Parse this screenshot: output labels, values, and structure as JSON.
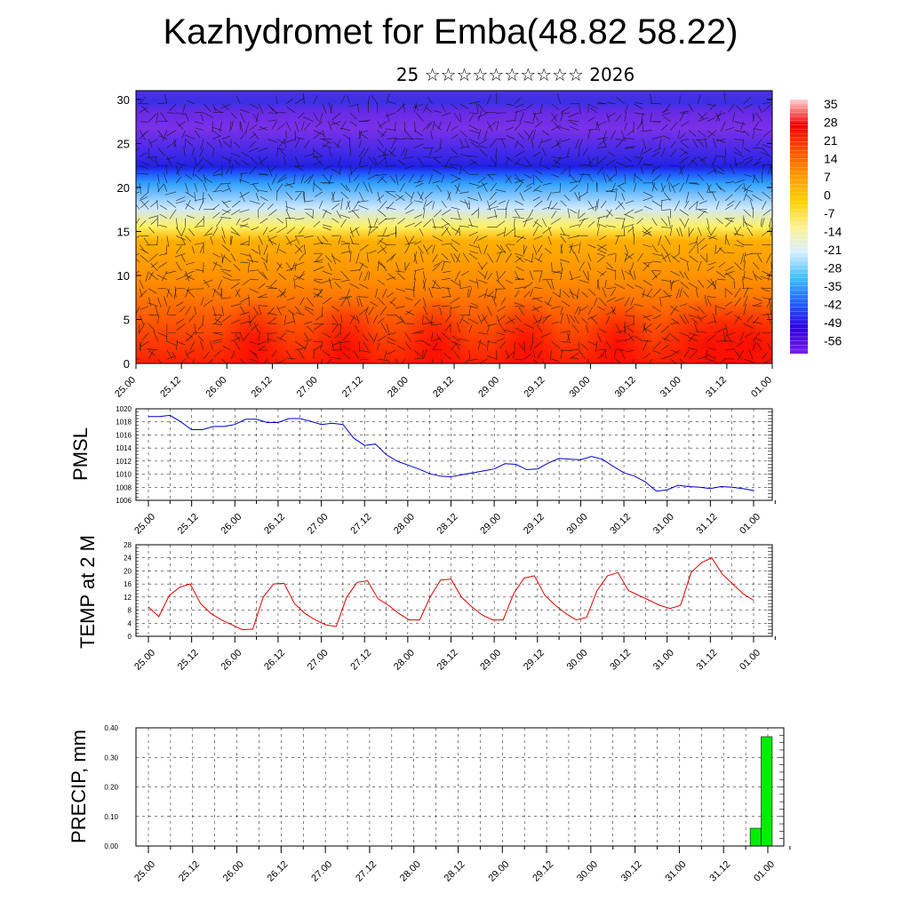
{
  "header": {
    "title": "Kazhydromet for Emba(48.82 58.22)",
    "subtitle": "25 ☆☆☆☆☆☆☆☆☆☆ 2026"
  },
  "time_labels": [
    "25.00",
    "25.12",
    "26.00",
    "26.12",
    "27.00",
    "27.12",
    "28.00",
    "28.12",
    "29.00",
    "29.12",
    "30.00",
    "30.12",
    "31.00",
    "31.12",
    "01.00"
  ],
  "chart_data": [
    {
      "type": "heatmap",
      "description_units": "height vs time cross-section with wind barbs",
      "yticks": [
        0,
        5,
        10,
        15,
        20,
        25,
        30
      ],
      "ylim": [
        0,
        31
      ],
      "colorbar": {
        "labels": [
          "35",
          "28",
          "21",
          "14",
          "7",
          "0",
          "-7",
          "-14",
          "-21",
          "-28",
          "-35",
          "-42",
          "-49",
          "-56"
        ],
        "stops": [
          "#ffd0d0",
          "#f00000",
          "#ff5000",
          "#ff9a00",
          "#ffd000",
          "#fff090",
          "#d8f0ff",
          "#40c0ff",
          "#2060ff",
          "#3000e0",
          "#7a20e0"
        ]
      },
      "colors": {
        "low": "#ff2000",
        "mid": "#ffb000",
        "yellow": "#fff060",
        "cold": "#30a0ff",
        "band": "#2020e0",
        "top": "#7a30e8"
      }
    },
    {
      "type": "line",
      "ylabel": "PMSL",
      "yticks": [
        1006,
        1008,
        1010,
        1012,
        1014,
        1016,
        1018,
        1020
      ],
      "ylim": [
        1006,
        1020
      ],
      "color": "#0000d0",
      "values": [
        1018.8,
        1018.8,
        1019,
        1018,
        1016.8,
        1016.8,
        1017.3,
        1017.3,
        1017.6,
        1018.4,
        1018.4,
        1017.9,
        1017.9,
        1018.5,
        1018.5,
        1018.1,
        1017.6,
        1017.8,
        1017.6,
        1015.5,
        1014.4,
        1014.6,
        1013,
        1012,
        1011.4,
        1010.8,
        1010.1,
        1009.7,
        1009.6,
        1009.9,
        1010.2,
        1010.5,
        1010.8,
        1011.6,
        1011.5,
        1010.7,
        1010.8,
        1011.7,
        1012.4,
        1012.3,
        1012.2,
        1012.7,
        1012.3,
        1011.2,
        1010.2,
        1009.7,
        1008.8,
        1007.4,
        1007.6,
        1008.3,
        1008.1,
        1008,
        1007.8,
        1008.1,
        1008,
        1007.8,
        1007.5
      ]
    },
    {
      "type": "line",
      "ylabel": "TEMP at 2 M",
      "yticks": [
        0,
        4,
        8,
        12,
        16,
        20,
        24,
        28
      ],
      "ylim": [
        0,
        28
      ],
      "color": "#e00000",
      "values": [
        9,
        6,
        12.5,
        15,
        16,
        10,
        7,
        5,
        3.5,
        2,
        2.2,
        12,
        16,
        16.2,
        10,
        7,
        5,
        3.5,
        3,
        12,
        16.5,
        17,
        11.5,
        9.5,
        7,
        5,
        5,
        12,
        17.2,
        17.5,
        12,
        9,
        6.5,
        5,
        5,
        13,
        17.8,
        18.5,
        12.5,
        9.5,
        7,
        5,
        5.8,
        14,
        18.5,
        19.5,
        14,
        12.5,
        11,
        9.5,
        8.5,
        9.5,
        19.5,
        22.5,
        24,
        19,
        16,
        13,
        11
      ]
    },
    {
      "type": "bar",
      "ylabel": "PRECIP, mm",
      "yticks": [
        "0.00",
        "0.10",
        "0.20",
        "0.30",
        "0.40"
      ],
      "ylim": [
        0,
        0.4
      ],
      "color": "#00ee00",
      "values": [
        0,
        0,
        0,
        0,
        0,
        0,
        0,
        0,
        0,
        0,
        0,
        0,
        0,
        0,
        0,
        0,
        0,
        0,
        0,
        0,
        0,
        0,
        0,
        0,
        0,
        0,
        0,
        0,
        0,
        0,
        0,
        0,
        0,
        0,
        0,
        0,
        0,
        0,
        0,
        0,
        0,
        0,
        0,
        0,
        0,
        0,
        0,
        0,
        0,
        0,
        0,
        0,
        0,
        0,
        0,
        0.06,
        0.37
      ]
    }
  ]
}
